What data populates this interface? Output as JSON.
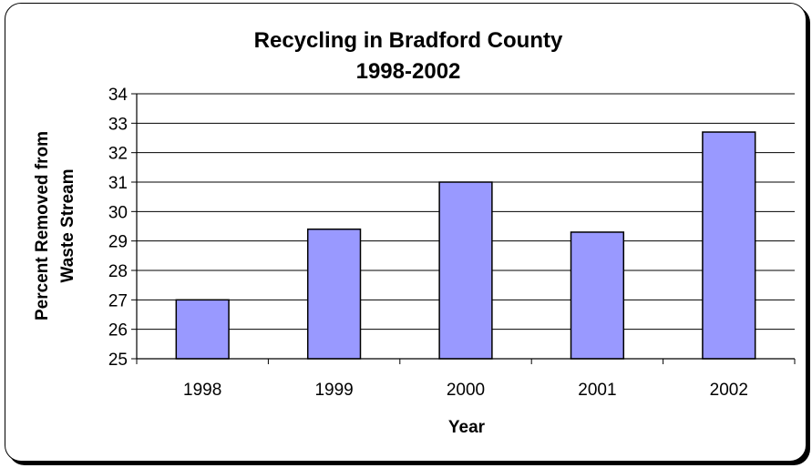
{
  "chart_data": {
    "type": "bar",
    "title": "Recycling in Bradford County",
    "subtitle": "1998-2002",
    "xlabel": "Year",
    "ylabel": [
      "Percent Removed from",
      "Waste Stream"
    ],
    "categories": [
      "1998",
      "1999",
      "2000",
      "2001",
      "2002"
    ],
    "values": [
      27.0,
      29.4,
      31.0,
      29.3,
      32.7
    ],
    "ylim": [
      25,
      34
    ],
    "yticks": [
      "25",
      "26",
      "27",
      "28",
      "29",
      "30",
      "31",
      "32",
      "33",
      "34"
    ],
    "grid": true,
    "legend": "none",
    "colors": {
      "bar_fill": "#9999ff",
      "bar_stroke": "#000000",
      "grid": "#000000",
      "axis": "#000000"
    }
  }
}
